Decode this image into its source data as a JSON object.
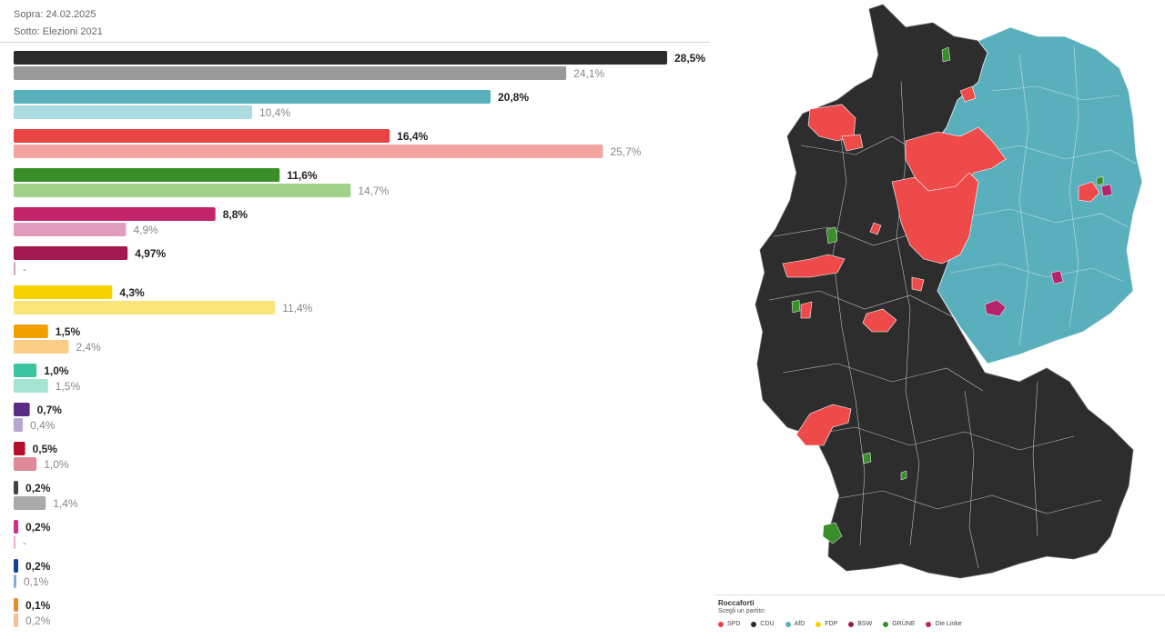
{
  "header": {
    "line1": "Sopra: 24.02.2025",
    "line2": "Sotto: Elezioni 2021"
  },
  "chart_data": {
    "type": "bar",
    "orientation": "horizontal",
    "xlim": [
      0,
      28.5
    ],
    "series": [
      {
        "values": [
          28.5,
          20.8,
          16.4,
          11.6,
          8.8,
          4.97,
          4.3,
          1.5,
          1.0,
          0.7,
          0.5,
          0.2,
          0.2,
          0.2,
          0.1
        ]
      },
      {
        "values": [
          24.1,
          10.4,
          25.7,
          14.7,
          4.9,
          null,
          11.4,
          2.4,
          1.5,
          0.4,
          1.0,
          1.4,
          null,
          0.1,
          0.2
        ]
      }
    ],
    "labels_top": [
      "28,5%",
      "20,8%",
      "16,4%",
      "11,6%",
      "8,8%",
      "4,97%",
      "4,3%",
      "1,5%",
      "1,0%",
      "0,7%",
      "0,5%",
      "0,2%",
      "0,2%",
      "0,2%",
      "0,1%"
    ],
    "labels_bottom": [
      "24,1%",
      "10,4%",
      "25,7%",
      "14,7%",
      "4,9%",
      "-",
      "11,4%",
      "2,4%",
      "1,5%",
      "0,4%",
      "1,0%",
      "1,4%",
      "-",
      "0,1%",
      "0,2%"
    ],
    "colors_top": [
      "#2b2b2b",
      "#5aafbd",
      "#e84444",
      "#3a8f2a",
      "#c2246a",
      "#a11a4d",
      "#f5d200",
      "#f0a000",
      "#3cc4a0",
      "#5a2c86",
      "#b3102e",
      "#444444",
      "#d12f86",
      "#13409a",
      "#e88a2f"
    ],
    "colors_bottom": [
      "#9a9a9a",
      "#acdce1",
      "#f3a4a0",
      "#a2d18a",
      "#e29cbd",
      "#cfa7b6",
      "#f9e57a",
      "#f9cf88",
      "#a6e4d2",
      "#b9a3cf",
      "#df8a96",
      "#aaaaaa",
      "#eeadd0",
      "#8aa8d4",
      "#f4c097"
    ]
  },
  "map": {
    "colors": {
      "SPD": "#ef4a4a",
      "CDU": "#2d2d2d",
      "AfD": "#5aafbd",
      "GRUNE": "#3a8f2a",
      "DieLinke": "#b5236a"
    }
  },
  "legend": {
    "title": "Roccaforti",
    "subtitle": "Scegli un partito:",
    "items": [
      {
        "label": "SPD",
        "color": "#e84444"
      },
      {
        "label": "CDU",
        "color": "#2b2b2b"
      },
      {
        "label": "AfD",
        "color": "#5aafbd"
      },
      {
        "label": "FDP",
        "color": "#f5d200"
      },
      {
        "label": "BSW",
        "color": "#a11a4d"
      },
      {
        "label": "GRÜNE",
        "color": "#3a8f2a"
      },
      {
        "label": "Die Linke",
        "color": "#c2246a"
      }
    ]
  }
}
